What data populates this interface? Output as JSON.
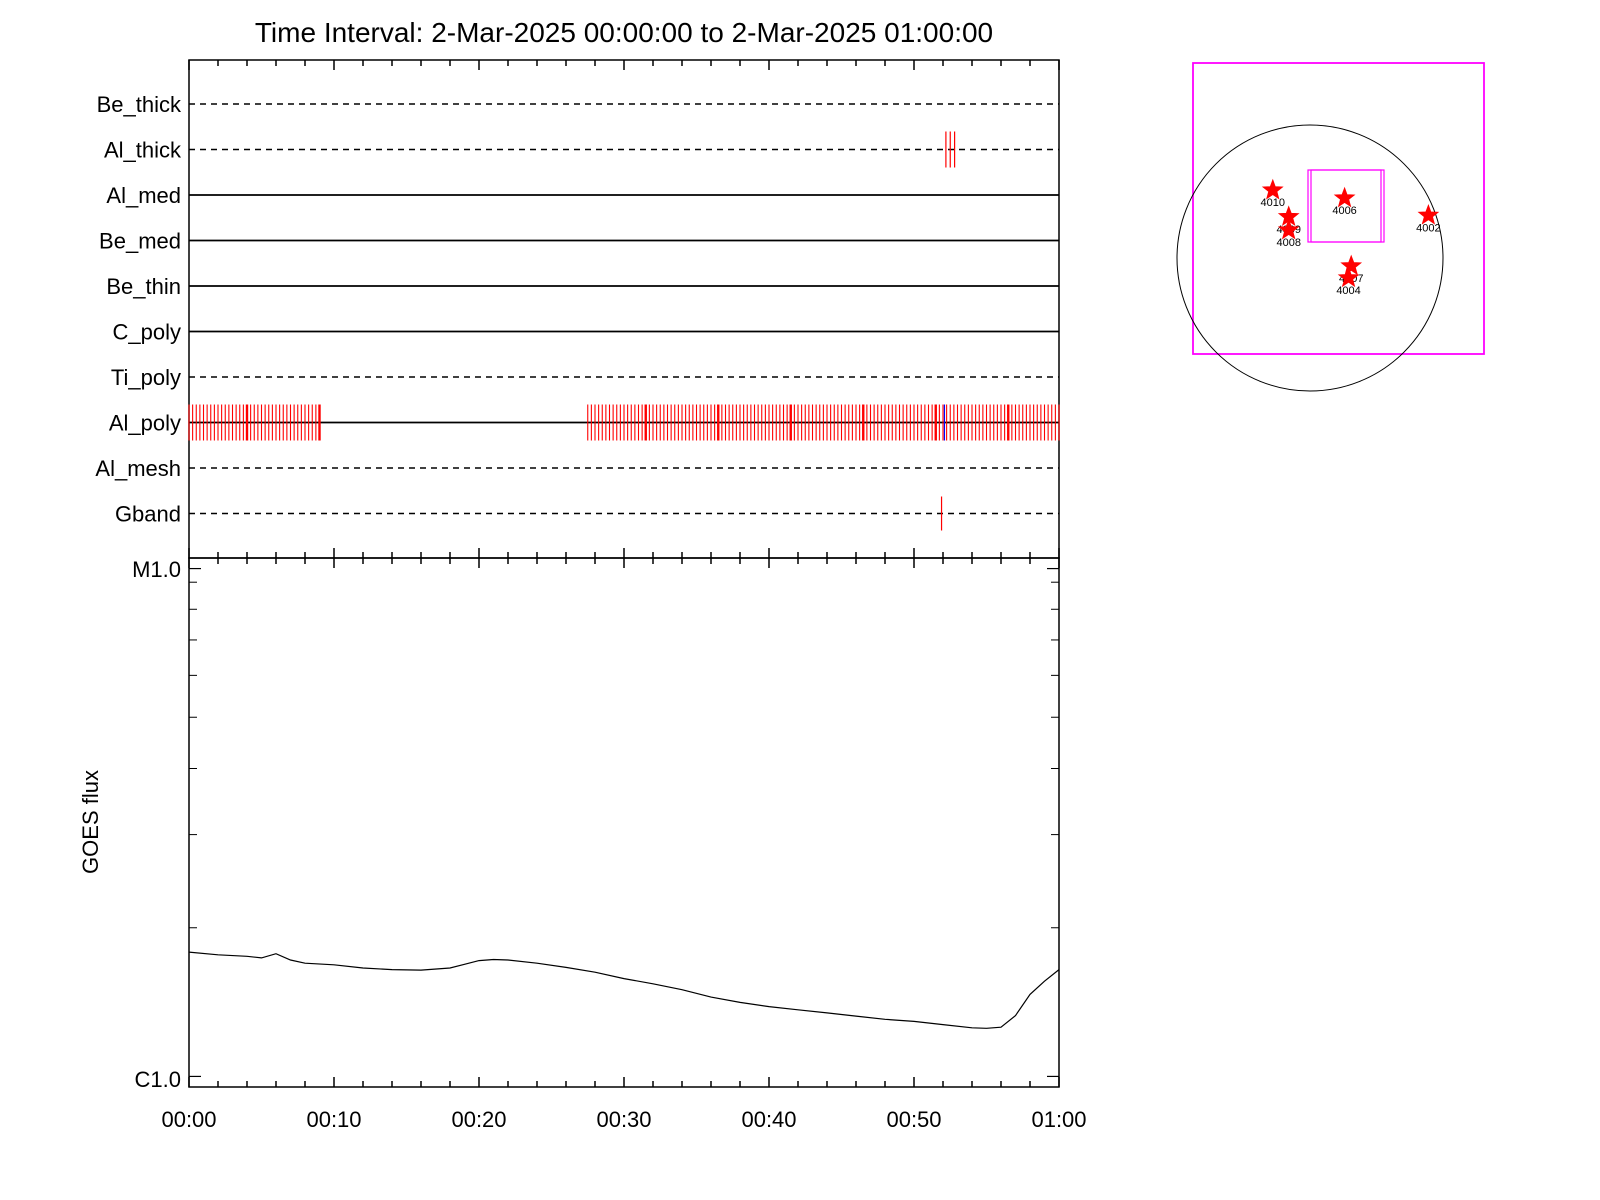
{
  "title": "Time Interval:  2-Mar-2025 00:00:00 to  2-Mar-2025 01:00:00",
  "colors": {
    "event": "#ff0000",
    "event_alt": "#0000ff",
    "flux": "#000000",
    "fov": "#ff00ff",
    "axis": "#000000"
  },
  "chart_data": [
    {
      "type": "timeline",
      "x_unit": "minutes since 00:00",
      "xlim": [
        0,
        60
      ],
      "x_ticks": [
        "00:00",
        "00:10",
        "00:20",
        "00:30",
        "00:40",
        "00:50",
        "01:00"
      ],
      "rows": [
        {
          "name": "Be_thick",
          "line": "dashed",
          "events": []
        },
        {
          "name": "Al_thick",
          "line": "dashed",
          "events": [
            52.2,
            52.5,
            52.8
          ]
        },
        {
          "name": "Al_med",
          "line": "solid",
          "events": []
        },
        {
          "name": "Be_med",
          "line": "solid",
          "events": []
        },
        {
          "name": "Be_thin",
          "line": "solid",
          "events": []
        },
        {
          "name": "C_poly",
          "line": "solid",
          "events": []
        },
        {
          "name": "Ti_poly",
          "line": "dashed",
          "events": []
        },
        {
          "name": "Al_poly",
          "line": "solid",
          "events": "periodic",
          "event_period_min": 0.25,
          "event_ranges": [
            [
              0,
              9.1
            ],
            [
              27.5,
              60
            ]
          ],
          "alt_event": 52.1
        },
        {
          "name": "Al_mesh",
          "line": "dashed",
          "events": []
        },
        {
          "name": "Gband",
          "line": "dashed",
          "events": [
            51.9
          ]
        }
      ]
    },
    {
      "type": "line",
      "ylabel": "GOES flux",
      "y_scale": "log",
      "y_ticks": [
        "M1.0",
        "C1.0"
      ],
      "ylim_labels": [
        "C1.0",
        "M1.0"
      ],
      "x_ticks": [
        "00:00",
        "00:10",
        "00:20",
        "00:30",
        "00:40",
        "00:50",
        "01:00"
      ],
      "series": [
        {
          "x": [
            0,
            2,
            4,
            5,
            6,
            7,
            8,
            10,
            12,
            14,
            16,
            18,
            19,
            20,
            21,
            22,
            24,
            26,
            28,
            30,
            32,
            34,
            36,
            38,
            40,
            42,
            44,
            46,
            48,
            50,
            52,
            54,
            55,
            56,
            57,
            58,
            59,
            60
          ],
          "y_frac": [
            0.255,
            0.25,
            0.247,
            0.244,
            0.252,
            0.24,
            0.234,
            0.231,
            0.225,
            0.222,
            0.221,
            0.225,
            0.232,
            0.239,
            0.241,
            0.24,
            0.234,
            0.226,
            0.217,
            0.205,
            0.195,
            0.184,
            0.17,
            0.16,
            0.152,
            0.146,
            0.14,
            0.134,
            0.128,
            0.124,
            0.118,
            0.112,
            0.111,
            0.113,
            0.135,
            0.175,
            0.2,
            0.222
          ]
        }
      ]
    },
    {
      "type": "scatter",
      "subtype": "detector-map",
      "points": [
        {
          "label": "4010",
          "x": -0.28,
          "y": 0.51
        },
        {
          "label": "4009",
          "x": -0.16,
          "y": 0.31
        },
        {
          "label": "4008",
          "x": -0.16,
          "y": 0.21
        },
        {
          "label": "4006",
          "x": 0.26,
          "y": 0.45
        },
        {
          "label": "4002",
          "x": 0.89,
          "y": 0.32
        },
        {
          "label": "4007",
          "x": 0.31,
          "y": -0.06
        },
        {
          "label": "4004",
          "x": 0.29,
          "y": -0.15
        }
      ]
    }
  ]
}
